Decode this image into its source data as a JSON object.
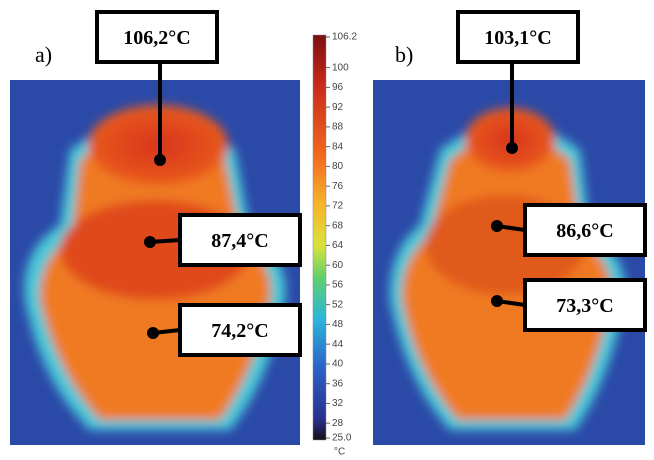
{
  "panels": [
    {
      "label": "a)",
      "annotations": [
        "106,2°C",
        "87,4°C",
        "74,2°C"
      ]
    },
    {
      "label": "b)",
      "annotations": [
        "103,1°C",
        "86,6°C",
        "73,3°C"
      ]
    }
  ],
  "colorbar": {
    "range": [
      25,
      106.2
    ],
    "ticks": [
      106.2,
      100,
      96,
      92,
      88,
      84,
      80,
      76,
      72,
      68,
      64,
      60,
      56,
      52,
      48,
      44,
      40,
      36,
      32,
      28,
      {
        "value": 25,
        "label": "25.0"
      }
    ],
    "unit": "°C"
  }
}
